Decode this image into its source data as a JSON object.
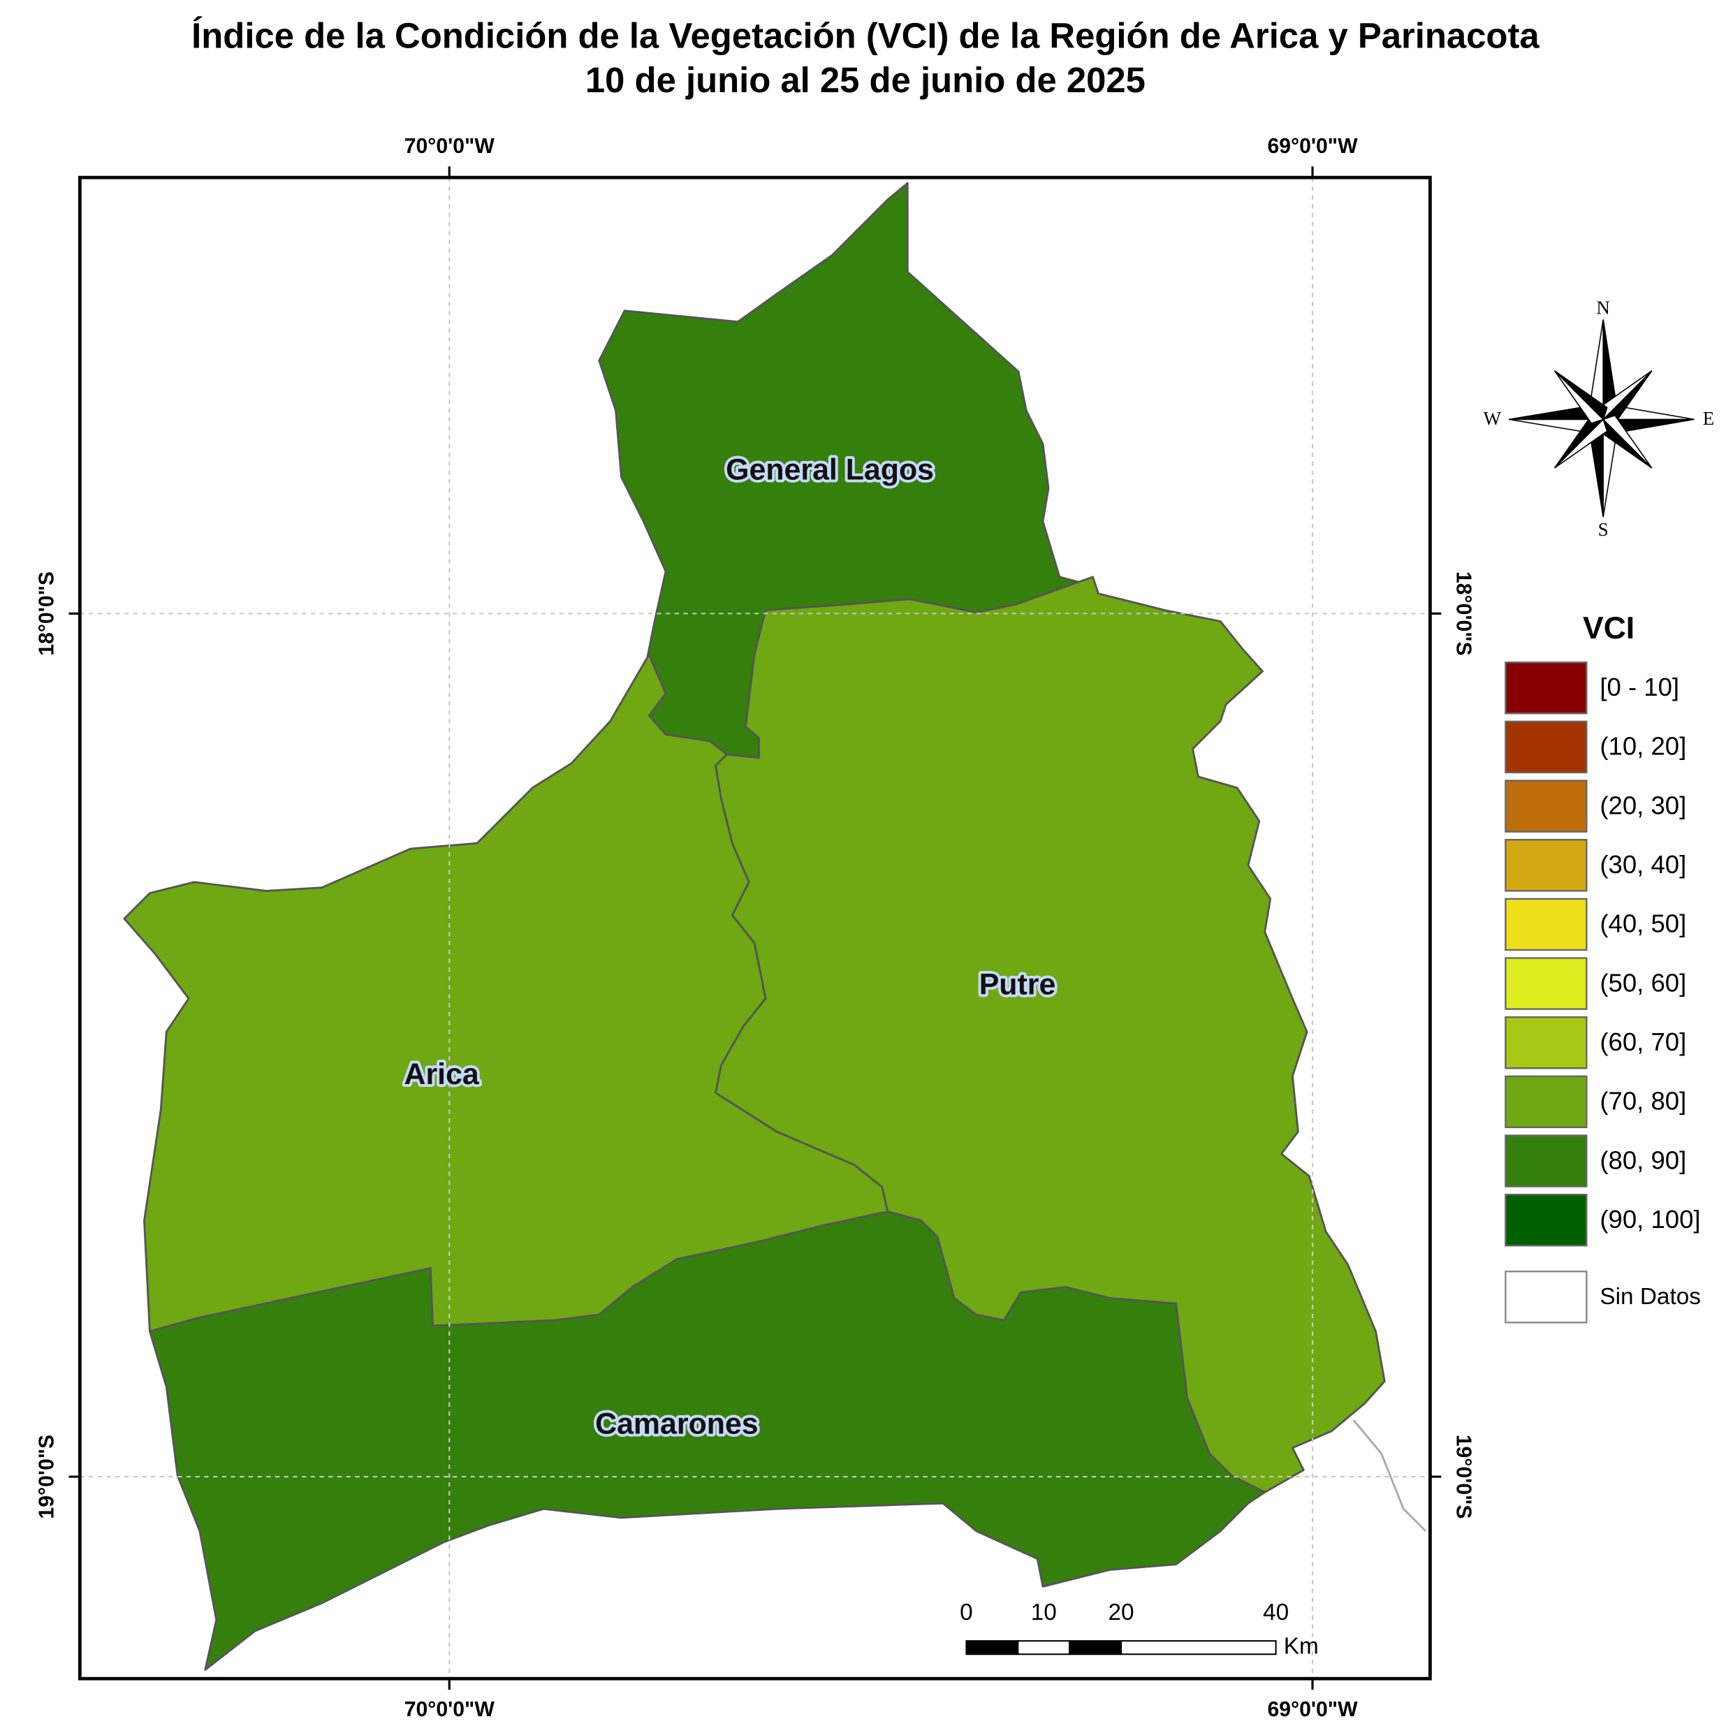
{
  "title": {
    "line1": "Índice de la Condición de la Vegetación (VCI) de la Región de Arica y Parinacota",
    "line2": "10 de junio al 25 de junio de 2025"
  },
  "graticule": {
    "top": [
      "70°0'0\"W",
      "69°0'0\"W"
    ],
    "bottom": [
      "70°0'0\"W",
      "69°0'0\"W"
    ],
    "left": [
      "18°0'0\"S",
      "19°0'0\"S"
    ],
    "right": [
      "18°0'0\"S",
      "19°0'0\"S"
    ]
  },
  "regions": [
    {
      "name": "General Lagos",
      "color": "#35800c"
    },
    {
      "name": "Putre",
      "color": "#6fa812"
    },
    {
      "name": "Arica",
      "color": "#6fa812"
    },
    {
      "name": "Camarones",
      "color": "#35800c"
    }
  ],
  "compass": {
    "n": "N",
    "e": "E",
    "s": "S",
    "w": "W"
  },
  "legend": {
    "title": "VCI",
    "items": [
      {
        "label": "[0 - 10]",
        "color": "#870000"
      },
      {
        "label": "(10, 20]",
        "color": "#a33300"
      },
      {
        "label": "(20, 30]",
        "color": "#bd6e0b"
      },
      {
        "label": "(30, 40]",
        "color": "#d4a812"
      },
      {
        "label": "(40, 50]",
        "color": "#ede01b"
      },
      {
        "label": "(50, 60]",
        "color": "#dcec1e"
      },
      {
        "label": "(60, 70]",
        "color": "#a8c814"
      },
      {
        "label": "(70, 80]",
        "color": "#6fa812"
      },
      {
        "label": "(80, 90]",
        "color": "#35800c"
      },
      {
        "label": "(90, 100]",
        "color": "#006000"
      }
    ],
    "no_data": {
      "label": "Sin Datos",
      "color": "#ffffff"
    }
  },
  "scale_bar": {
    "ticks": [
      0,
      10,
      20,
      40
    ],
    "unit": "Km"
  }
}
